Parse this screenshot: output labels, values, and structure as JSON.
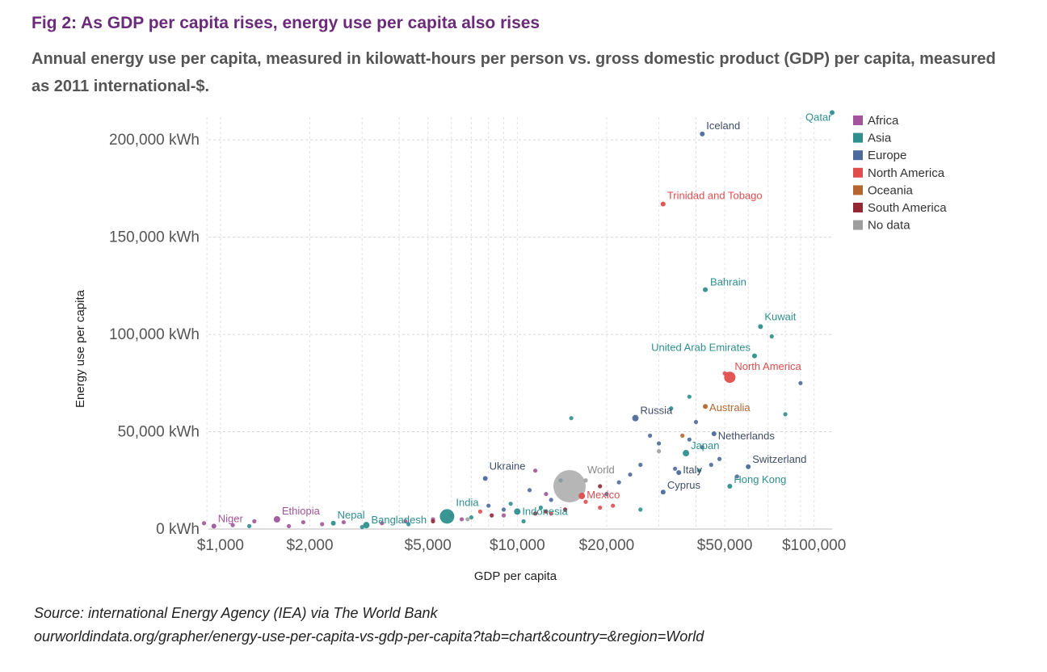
{
  "title": "Fig 2: As GDP per capita rises, energy use per capita also rises",
  "subtitle": "Annual energy use per capita, measured in kilowatt-hours per person vs. gross domestic product (GDP) per capita, measured as 2011 international-$.",
  "source": "Source: international Energy Agency (IEA) via The World Bank",
  "url": "ourworldindata.org/grapher/energy-use-per-capita-vs-gdp-per-capita?tab=chart&country=&region=World",
  "colors": {
    "Africa": "#a2559c",
    "Asia": "#2f8f8f",
    "Europe": "#4c6a9c",
    "North America": "#e04d4d",
    "Oceania": "#b5662f",
    "South America": "#932834",
    "No data": "#9e9e9e"
  },
  "chart_data": {
    "type": "scatter",
    "xlabel": "GDP per capita",
    "ylabel": "Energy use per capita",
    "xscale": "log",
    "xlim": [
      850,
      115000
    ],
    "ylim": [
      0,
      215000
    ],
    "x_ticks": [
      {
        "value": 1000,
        "label": "$1,000"
      },
      {
        "value": 2000,
        "label": "$2,000"
      },
      {
        "value": 5000,
        "label": "$5,000"
      },
      {
        "value": 10000,
        "label": "$10,000"
      },
      {
        "value": 20000,
        "label": "$20,000"
      },
      {
        "value": 50000,
        "label": "$50,000"
      },
      {
        "value": 100000,
        "label": "$100,000"
      }
    ],
    "y_ticks": [
      {
        "value": 0,
        "label": "0 kWh"
      },
      {
        "value": 50000,
        "label": "50,000 kWh"
      },
      {
        "value": 100000,
        "label": "100,000 kWh"
      },
      {
        "value": 150000,
        "label": "150,000 kWh"
      },
      {
        "value": 200000,
        "label": "200,000 kWh"
      }
    ],
    "grid": true,
    "legend_position": "right",
    "legend": [
      "Africa",
      "Asia",
      "Europe",
      "North America",
      "Oceania",
      "South America",
      "No data"
    ],
    "labeled_points": [
      {
        "name": "Qatar",
        "region": "Asia",
        "x": 115000,
        "y": 214000,
        "r": 3
      },
      {
        "name": "Iceland",
        "region": "Europe",
        "x": 42000,
        "y": 203000,
        "r": 3
      },
      {
        "name": "Trinidad and Tobago",
        "region": "North America",
        "x": 31000,
        "y": 167000,
        "r": 3
      },
      {
        "name": "Bahrain",
        "region": "Asia",
        "x": 43000,
        "y": 123000,
        "r": 3
      },
      {
        "name": "Kuwait",
        "region": "Asia",
        "x": 66000,
        "y": 104000,
        "r": 3
      },
      {
        "name": "United Arab Emirates",
        "region": "Asia",
        "x": 63000,
        "y": 89000,
        "r": 3
      },
      {
        "name": "North America",
        "region": "North America",
        "x": 52000,
        "y": 78000,
        "r": 7
      },
      {
        "name": "Australia",
        "region": "Oceania",
        "x": 43000,
        "y": 63000,
        "r": 3
      },
      {
        "name": "Russia",
        "region": "Europe",
        "x": 25000,
        "y": 57000,
        "r": 4
      },
      {
        "name": "Netherlands",
        "region": "Europe",
        "x": 46000,
        "y": 49000,
        "r": 3
      },
      {
        "name": "Japan",
        "region": "Asia",
        "x": 37000,
        "y": 39000,
        "r": 4
      },
      {
        "name": "Switzerland",
        "region": "Europe",
        "x": 60000,
        "y": 32000,
        "r": 3
      },
      {
        "name": "Italy",
        "region": "Europe",
        "x": 35000,
        "y": 29000,
        "r": 3
      },
      {
        "name": "Hong Kong",
        "region": "Asia",
        "x": 52000,
        "y": 22000,
        "r": 3
      },
      {
        "name": "Cyprus",
        "region": "Europe",
        "x": 31000,
        "y": 19000,
        "r": 3
      },
      {
        "name": "Ukraine",
        "region": "Europe",
        "x": 7800,
        "y": 26000,
        "r": 3
      },
      {
        "name": "World",
        "region": "No data",
        "x": 15000,
        "y": 22000,
        "r": 20
      },
      {
        "name": "Mexico",
        "region": "North America",
        "x": 16500,
        "y": 17000,
        "r": 4
      },
      {
        "name": "Indonesia",
        "region": "Asia",
        "x": 10000,
        "y": 9000,
        "r": 4
      },
      {
        "name": "India",
        "region": "Asia",
        "x": 5800,
        "y": 6500,
        "r": 9
      },
      {
        "name": "Bangladesh",
        "region": "Asia",
        "x": 3100,
        "y": 2000,
        "r": 4
      },
      {
        "name": "Nepal",
        "region": "Asia",
        "x": 2400,
        "y": 3000,
        "r": 3
      },
      {
        "name": "Ethiopia",
        "region": "Africa",
        "x": 1550,
        "y": 5000,
        "r": 4
      },
      {
        "name": "Niger",
        "region": "Africa",
        "x": 950,
        "y": 1500,
        "r": 3
      }
    ],
    "other_points": [
      {
        "region": "Africa",
        "x": 880,
        "y": 3000
      },
      {
        "region": "Africa",
        "x": 1100,
        "y": 2000
      },
      {
        "region": "Africa",
        "x": 1300,
        "y": 4000
      },
      {
        "region": "Africa",
        "x": 1700,
        "y": 1500
      },
      {
        "region": "Africa",
        "x": 1900,
        "y": 3500
      },
      {
        "region": "Africa",
        "x": 2200,
        "y": 2500
      },
      {
        "region": "Africa",
        "x": 2600,
        "y": 3500
      },
      {
        "region": "Africa",
        "x": 3500,
        "y": 3000
      },
      {
        "region": "Africa",
        "x": 4200,
        "y": 4000
      },
      {
        "region": "Africa",
        "x": 5200,
        "y": 5000
      },
      {
        "region": "Africa",
        "x": 6500,
        "y": 5000
      },
      {
        "region": "Africa",
        "x": 9000,
        "y": 7000
      },
      {
        "region": "Africa",
        "x": 11500,
        "y": 30000
      },
      {
        "region": "Africa",
        "x": 12500,
        "y": 18000
      },
      {
        "region": "Asia",
        "x": 1250,
        "y": 1500
      },
      {
        "region": "Asia",
        "x": 3000,
        "y": 1000
      },
      {
        "region": "Asia",
        "x": 4300,
        "y": 2500
      },
      {
        "region": "Asia",
        "x": 7000,
        "y": 6000
      },
      {
        "region": "Asia",
        "x": 9500,
        "y": 13000
      },
      {
        "region": "Asia",
        "x": 10500,
        "y": 4000
      },
      {
        "region": "Asia",
        "x": 12000,
        "y": 11000
      },
      {
        "region": "Asia",
        "x": 14000,
        "y": 25000
      },
      {
        "region": "Asia",
        "x": 15200,
        "y": 57000
      },
      {
        "region": "Asia",
        "x": 26000,
        "y": 10000
      },
      {
        "region": "Asia",
        "x": 33000,
        "y": 62000
      },
      {
        "region": "Asia",
        "x": 38000,
        "y": 68000
      },
      {
        "region": "Asia",
        "x": 41000,
        "y": 30000
      },
      {
        "region": "Asia",
        "x": 80000,
        "y": 59000
      },
      {
        "region": "Asia",
        "x": 72000,
        "y": 99000
      },
      {
        "region": "Europe",
        "x": 8000,
        "y": 12000
      },
      {
        "region": "Europe",
        "x": 9000,
        "y": 10000
      },
      {
        "region": "Europe",
        "x": 11000,
        "y": 20000
      },
      {
        "region": "Europe",
        "x": 13000,
        "y": 15000
      },
      {
        "region": "Europe",
        "x": 20000,
        "y": 18000
      },
      {
        "region": "Europe",
        "x": 22000,
        "y": 24000
      },
      {
        "region": "Europe",
        "x": 24000,
        "y": 28000
      },
      {
        "region": "Europe",
        "x": 26000,
        "y": 33000
      },
      {
        "region": "Europe",
        "x": 28000,
        "y": 48000
      },
      {
        "region": "Europe",
        "x": 30000,
        "y": 44000
      },
      {
        "region": "Europe",
        "x": 34000,
        "y": 31000
      },
      {
        "region": "Europe",
        "x": 38000,
        "y": 46000
      },
      {
        "region": "Europe",
        "x": 40000,
        "y": 55000
      },
      {
        "region": "Europe",
        "x": 42000,
        "y": 42000
      },
      {
        "region": "Europe",
        "x": 45000,
        "y": 33000
      },
      {
        "region": "Europe",
        "x": 48000,
        "y": 36000
      },
      {
        "region": "Europe",
        "x": 55000,
        "y": 27000
      },
      {
        "region": "Europe",
        "x": 90000,
        "y": 75000
      },
      {
        "region": "North America",
        "x": 6000,
        "y": 7000
      },
      {
        "region": "North America",
        "x": 7500,
        "y": 9000
      },
      {
        "region": "North America",
        "x": 13000,
        "y": 8000
      },
      {
        "region": "North America",
        "x": 17000,
        "y": 14000
      },
      {
        "region": "North America",
        "x": 19000,
        "y": 11000
      },
      {
        "region": "North America",
        "x": 21000,
        "y": 12000
      },
      {
        "region": "North America",
        "x": 50000,
        "y": 80000
      },
      {
        "region": "Oceania",
        "x": 36000,
        "y": 48000
      },
      {
        "region": "South America",
        "x": 5200,
        "y": 4000
      },
      {
        "region": "South America",
        "x": 8200,
        "y": 7000
      },
      {
        "region": "South America",
        "x": 11500,
        "y": 8000
      },
      {
        "region": "South America",
        "x": 12500,
        "y": 9000
      },
      {
        "region": "South America",
        "x": 14500,
        "y": 10000
      },
      {
        "region": "South America",
        "x": 19000,
        "y": 22000
      },
      {
        "region": "No data",
        "x": 6800,
        "y": 5000
      },
      {
        "region": "No data",
        "x": 17000,
        "y": 25000
      },
      {
        "region": "No data",
        "x": 30000,
        "y": 40000
      }
    ]
  }
}
